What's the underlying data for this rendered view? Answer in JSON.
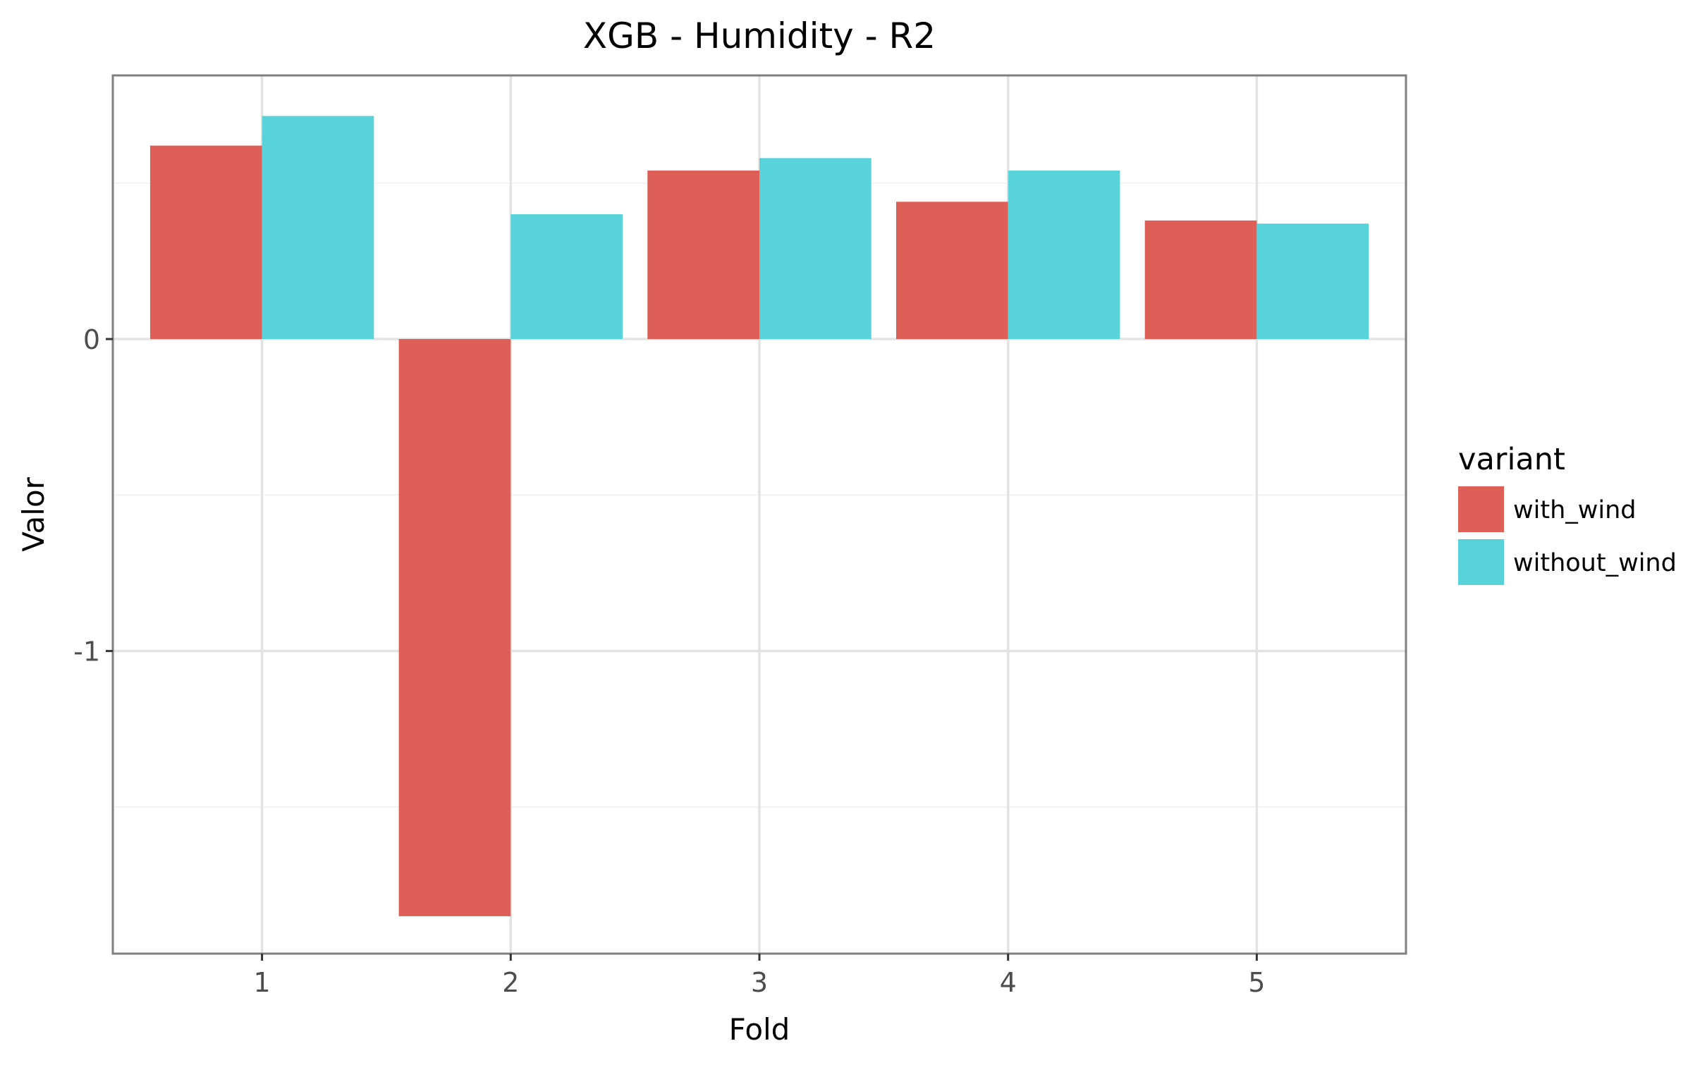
{
  "chart_data": {
    "type": "bar",
    "title": "XGB - Humidity - R2",
    "xlabel": "Fold",
    "ylabel": "Valor",
    "categories": [
      "1",
      "2",
      "3",
      "4",
      "5"
    ],
    "series": [
      {
        "name": "with_wind",
        "color": "#DD5F57",
        "values": [
          0.62,
          -1.85,
          0.54,
          0.44,
          0.38
        ]
      },
      {
        "name": "without_wind",
        "color": "#58D3DA",
        "values": [
          0.715,
          0.4,
          0.58,
          0.54,
          0.37
        ]
      }
    ],
    "yticks": [
      "0",
      "-1"
    ],
    "ylim": [
      -1.97,
      0.845
    ],
    "grid": true,
    "legend": {
      "title": "variant",
      "position": "right"
    }
  }
}
